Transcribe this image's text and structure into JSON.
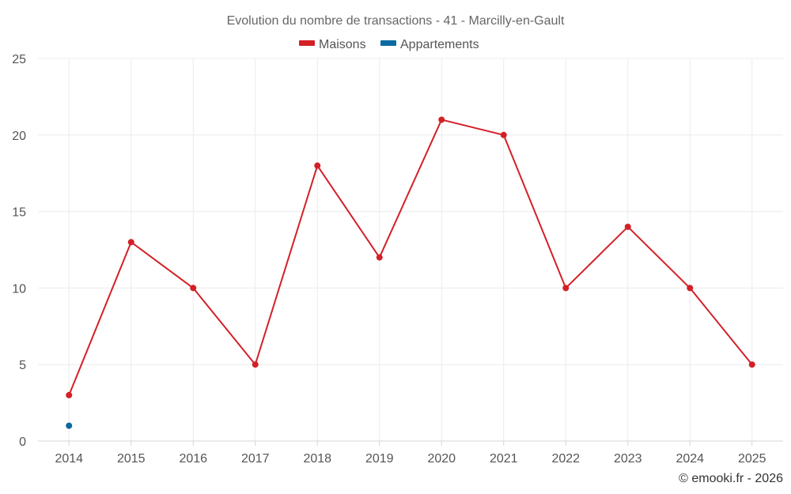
{
  "chart_data": {
    "type": "line",
    "title": "Evolution du nombre de transactions - 41 - Marcilly-en-Gault",
    "categories": [
      "2014",
      "2015",
      "2016",
      "2017",
      "2018",
      "2019",
      "2020",
      "2021",
      "2022",
      "2023",
      "2024",
      "2025"
    ],
    "series": [
      {
        "name": "Maisons",
        "color": "#d32027",
        "values": [
          3,
          13,
          10,
          5,
          18,
          12,
          21,
          20,
          10,
          14,
          10,
          5
        ]
      },
      {
        "name": "Appartements",
        "color": "#0a6aa1",
        "values": [
          1,
          null,
          null,
          null,
          null,
          null,
          null,
          null,
          null,
          null,
          null,
          null
        ]
      }
    ],
    "ylim": [
      0,
      25
    ],
    "yticks": [
      0,
      5,
      10,
      15,
      20,
      25
    ],
    "xlabel": "",
    "ylabel": "",
    "grid": true,
    "legend_position": "top-center"
  },
  "credit": "© emooki.fr - 2026"
}
